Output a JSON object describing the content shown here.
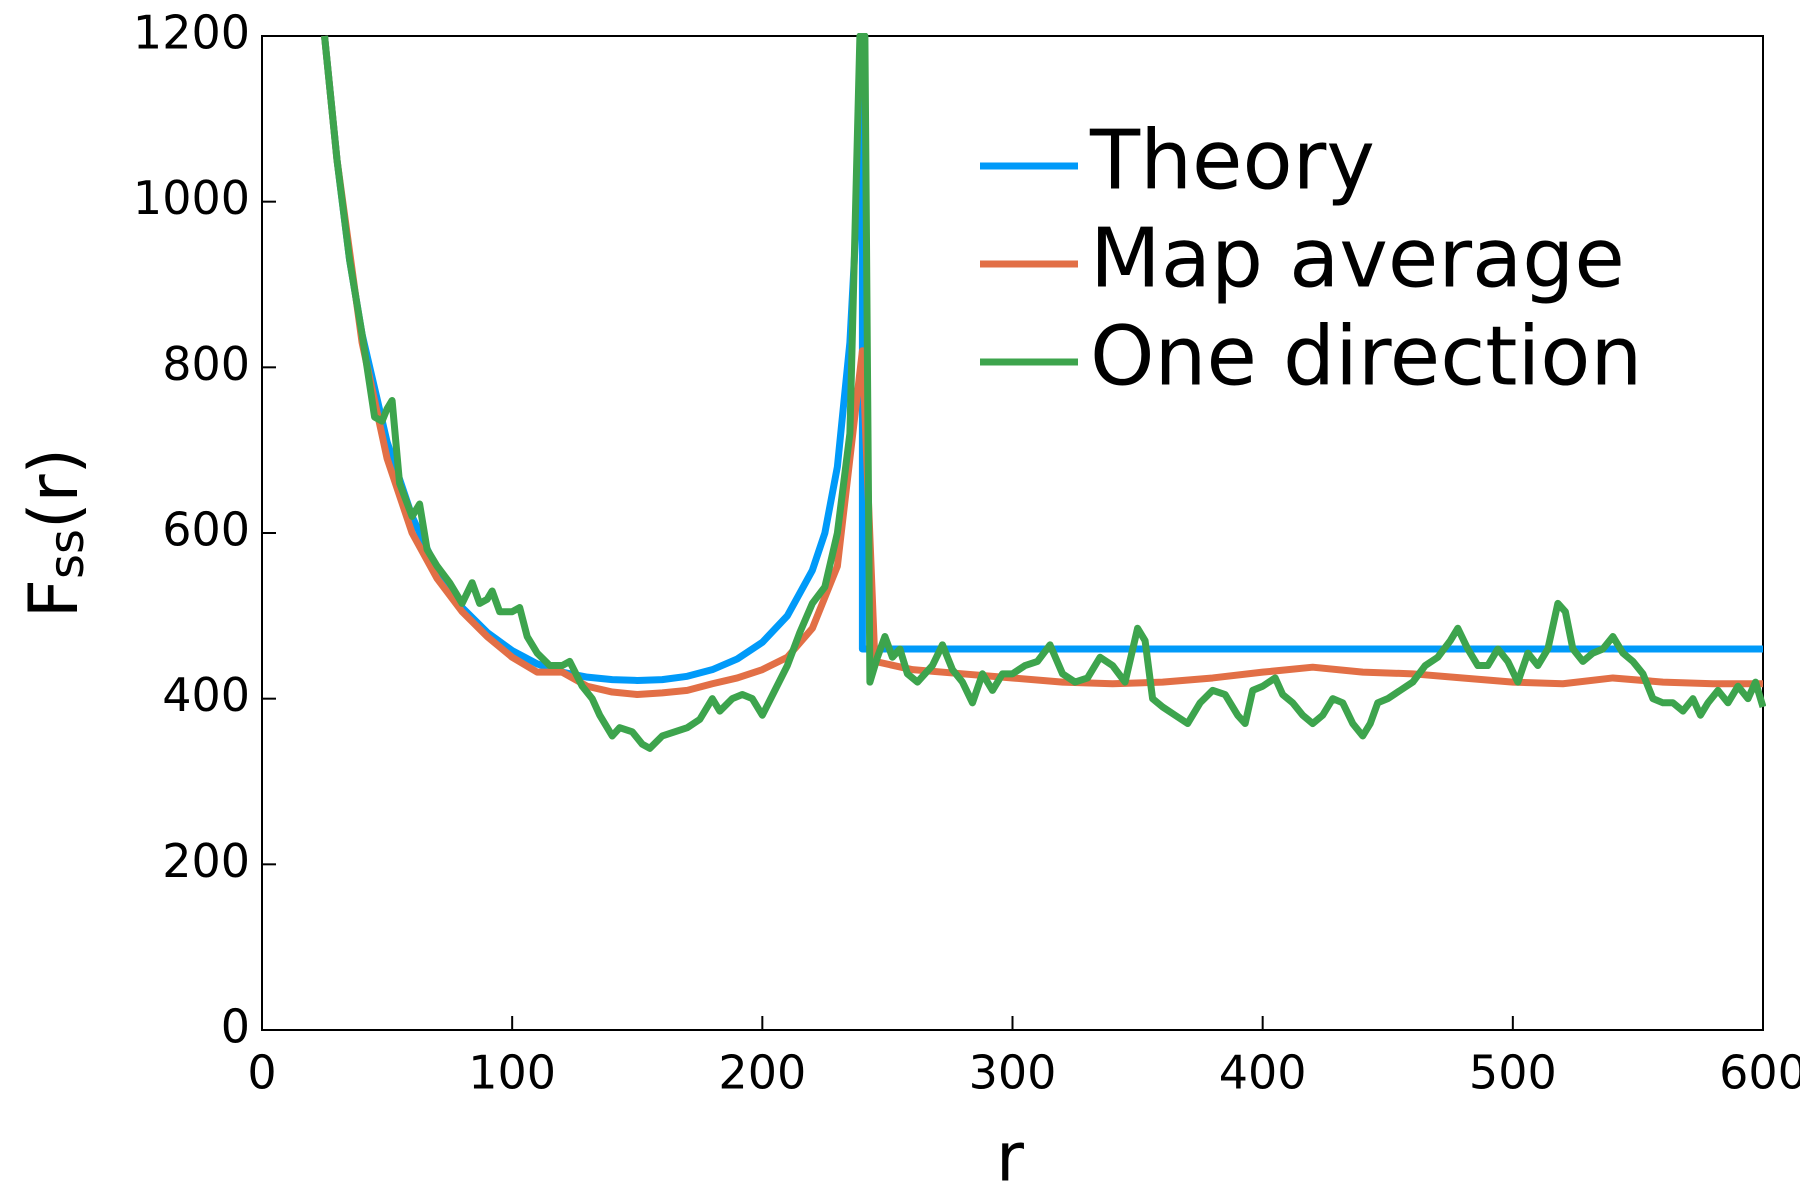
{
  "chart_data": {
    "type": "line",
    "xlabel": "r",
    "ylabel": {
      "main": "F",
      "sub": "ss",
      "tail": "(r)"
    },
    "xlim": [
      0,
      600
    ],
    "ylim": [
      0,
      1200
    ],
    "xticks": [
      0,
      100,
      200,
      300,
      400,
      500,
      600
    ],
    "yticks": [
      0,
      200,
      400,
      600,
      800,
      1000,
      1200
    ],
    "grid": false,
    "legend": "top-right",
    "series": [
      {
        "name": "Theory",
        "color": "#009af9",
        "x": [
          25,
          30,
          35,
          40,
          50,
          60,
          70,
          80,
          90,
          100,
          110,
          120,
          130,
          140,
          150,
          160,
          170,
          180,
          190,
          200,
          210,
          220,
          225,
          230,
          235,
          238,
          240,
          240,
          600
        ],
        "values": [
          1200,
          1050,
          930,
          840,
          710,
          620,
          555,
          510,
          480,
          458,
          442,
          432,
          426,
          423,
          422,
          423,
          427,
          435,
          448,
          468,
          500,
          555,
          600,
          680,
          830,
          1000,
          1200,
          460,
          460
        ]
      },
      {
        "name": "Map average",
        "color": "#e26f46",
        "x": [
          25,
          30,
          40,
          50,
          60,
          70,
          80,
          90,
          100,
          110,
          120,
          130,
          140,
          150,
          160,
          170,
          180,
          190,
          200,
          210,
          220,
          230,
          240,
          245,
          260,
          280,
          300,
          320,
          340,
          360,
          380,
          400,
          420,
          440,
          460,
          480,
          500,
          520,
          540,
          560,
          580,
          600
        ],
        "values": [
          1200,
          1050,
          830,
          690,
          600,
          545,
          505,
          475,
          450,
          432,
          432,
          415,
          408,
          405,
          407,
          410,
          418,
          425,
          435,
          450,
          485,
          560,
          820,
          445,
          435,
          430,
          425,
          420,
          418,
          420,
          425,
          432,
          438,
          432,
          430,
          425,
          420,
          418,
          425,
          420,
          418,
          418
        ]
      },
      {
        "name": "One direction",
        "color": "#3da44d",
        "x": [
          25,
          30,
          35,
          40,
          45,
          48,
          50,
          52,
          55,
          60,
          63,
          66,
          70,
          75,
          80,
          84,
          87,
          90,
          92,
          95,
          100,
          103,
          106,
          110,
          115,
          120,
          123,
          128,
          132,
          135,
          140,
          143,
          148,
          152,
          155,
          160,
          165,
          170,
          175,
          180,
          183,
          188,
          192,
          196,
          200,
          205,
          210,
          215,
          220,
          225,
          230,
          235,
          239,
          241,
          243,
          246,
          249,
          252,
          255,
          258,
          262,
          268,
          272,
          276,
          280,
          284,
          288,
          292,
          296,
          300,
          305,
          310,
          315,
          320,
          325,
          330,
          335,
          340,
          345,
          350,
          353,
          356,
          360,
          365,
          370,
          375,
          380,
          385,
          390,
          393,
          396,
          400,
          405,
          408,
          412,
          416,
          420,
          424,
          428,
          432,
          436,
          440,
          443,
          446,
          450,
          455,
          460,
          465,
          470,
          475,
          478,
          482,
          486,
          490,
          494,
          498,
          502,
          506,
          510,
          514,
          518,
          521,
          524,
          528,
          532,
          536,
          540,
          544,
          548,
          552,
          556,
          560,
          564,
          568,
          572,
          575,
          578,
          582,
          586,
          590,
          594,
          597,
          600
        ],
        "values": [
          1200,
          1050,
          930,
          840,
          740,
          735,
          750,
          760,
          660,
          620,
          635,
          580,
          560,
          540,
          515,
          540,
          515,
          520,
          530,
          505,
          505,
          510,
          475,
          455,
          440,
          440,
          445,
          415,
          400,
          380,
          355,
          365,
          360,
          345,
          340,
          355,
          360,
          365,
          375,
          400,
          385,
          400,
          405,
          400,
          380,
          410,
          440,
          480,
          515,
          535,
          600,
          720,
          1200,
          1200,
          420,
          450,
          475,
          450,
          460,
          430,
          420,
          440,
          465,
          435,
          420,
          395,
          430,
          410,
          430,
          430,
          440,
          445,
          465,
          430,
          420,
          425,
          450,
          440,
          420,
          485,
          470,
          400,
          390,
          380,
          370,
          395,
          410,
          405,
          380,
          370,
          410,
          415,
          425,
          405,
          395,
          380,
          370,
          380,
          400,
          395,
          370,
          355,
          370,
          395,
          400,
          410,
          420,
          440,
          450,
          470,
          485,
          460,
          440,
          440,
          460,
          445,
          420,
          455,
          440,
          460,
          515,
          505,
          460,
          445,
          455,
          460,
          475,
          455,
          445,
          430,
          400,
          395,
          395,
          385,
          400,
          380,
          395,
          410,
          395,
          415,
          400,
          420,
          390
        ]
      }
    ]
  }
}
